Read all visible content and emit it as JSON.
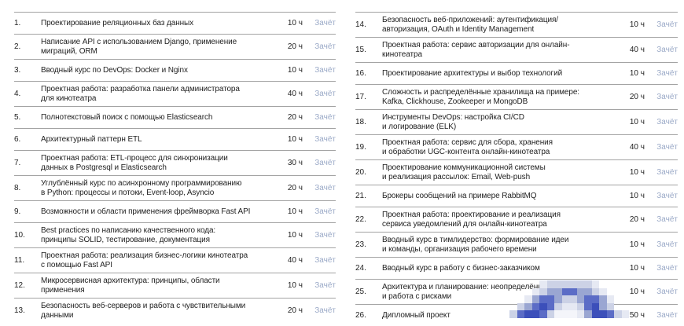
{
  "page": {
    "background": "#ffffff",
    "text_color": "#1f1f1f",
    "grade_color": "#9aa9c7",
    "rule_color": "#a3a3a3"
  },
  "columns": [
    {
      "side": "left",
      "items": [
        {
          "num": "1.",
          "title": "Проектирование реляционных баз данных",
          "hours": "10 ч",
          "grade": "Зачёт"
        },
        {
          "num": "2.",
          "title": "Написание API с использованием Django, применение\nмиграций, ORM",
          "hours": "20 ч",
          "grade": "Зачёт"
        },
        {
          "num": "3.",
          "title": "Вводный курс по DevOps: Docker и Nginx",
          "hours": "10 ч",
          "grade": "Зачёт"
        },
        {
          "num": "4.",
          "title": "Проектная работа: разработка панели администратора\nдля кинотеатра",
          "hours": "40 ч",
          "grade": "Зачёт"
        },
        {
          "num": "5.",
          "title": "Полнотекстовый поиск с помощью Elasticsearch",
          "hours": "20 ч",
          "grade": "Зачёт"
        },
        {
          "num": "6.",
          "title": "Архитектурный паттерн ETL",
          "hours": "10 ч",
          "grade": "Зачёт"
        },
        {
          "num": "7.",
          "title": "Проектная работа: ETL-процесс для синхронизации\nданных в Postgresql и Elasticsearch",
          "hours": "30 ч",
          "grade": "Зачёт"
        },
        {
          "num": "8.",
          "title": "Углублённый курс по асинхронному программированию\nв Python: процессы и потоки, Event-loop, Asyncio",
          "hours": "20 ч",
          "grade": "Зачёт"
        },
        {
          "num": "9.",
          "title": "Возможности и области применения фреймворка Fast API",
          "hours": "10 ч",
          "grade": "Зачёт"
        },
        {
          "num": "10.",
          "title": "Best practices по написанию качественного кода:\nпринципы SOLID, тестирование, документация",
          "hours": "10 ч",
          "grade": "Зачёт"
        },
        {
          "num": "11.",
          "title": "Проектная работа: реализация бизнес-логики кинотеатра\nс помощью Fast API",
          "hours": "40 ч",
          "grade": "Зачёт"
        },
        {
          "num": "12.",
          "title": "Микросервисная архитектура: принципы, области\nприменения",
          "hours": "10 ч",
          "grade": "Зачёт"
        },
        {
          "num": "13.",
          "title": "Безопасность веб-серверов и работа с чувствительными\nданными",
          "hours": "20 ч",
          "grade": "Зачёт"
        }
      ]
    },
    {
      "side": "right",
      "items": [
        {
          "num": "14.",
          "title": "Безопасность веб-приложений: аутентификация/\nавторизация, OAuth и Identity Management",
          "hours": "10 ч",
          "grade": "Зачёт"
        },
        {
          "num": "15.",
          "title": "Проектная работа: сервис авторизации для онлайн-\nкинотеатра",
          "hours": "40 ч",
          "grade": "Зачёт"
        },
        {
          "num": "16.",
          "title": "Проектирование архитектуры и выбор технологий",
          "hours": "10 ч",
          "grade": "Зачёт"
        },
        {
          "num": "17.",
          "title": "Сложность и распределённые хранилища на примере:\nKafka, Clickhouse, Zookeeper и MongoDB",
          "hours": "20 ч",
          "grade": "Зачёт"
        },
        {
          "num": "18.",
          "title": "Инструменты DevOps: настройка CI/CD\nи логирование (ELK)",
          "hours": "10 ч",
          "grade": "Зачёт"
        },
        {
          "num": "19.",
          "title": "Проектная работа: сервис для сбора, хранения\nи обработки UGC-контента онлайн-кинотеатра",
          "hours": "40 ч",
          "grade": "Зачёт"
        },
        {
          "num": "20.",
          "title": "Проектирование коммуникационной системы\nи реализация рассылок: Email, Web-push",
          "hours": "10 ч",
          "grade": "Зачёт"
        },
        {
          "num": "21.",
          "title": "Брокеры сообщений на примере RabbitMQ",
          "hours": "10 ч",
          "grade": "Зачёт"
        },
        {
          "num": "22.",
          "title": "Проектная работа: проектирование и реализация\nсервиса уведомлений для онлайн-кинотеатра",
          "hours": "20 ч",
          "grade": "Зачёт"
        },
        {
          "num": "23.",
          "title": "Вводный курс в тимлидерство: формирование идеи\nи команды, организация рабочего времени",
          "hours": "10 ч",
          "grade": "Зачёт"
        },
        {
          "num": "24.",
          "title": "Вводный курс в работу с бизнес-заказчиком",
          "hours": "10 ч",
          "grade": "Зачёт"
        },
        {
          "num": "25.",
          "title": "Архитектура и планирование: неопределённость\nи работа с рисками",
          "hours": "10 ч",
          "grade": "Зачёт"
        },
        {
          "num": "26.",
          "title": "Дипломный проект",
          "hours": "50 ч",
          "grade": "Зачёт"
        }
      ]
    }
  ],
  "stamp": {
    "palette": {
      "_": "transparent",
      "a": "#e6e9f3",
      "b": "#ccd2e6",
      "c": "#9aa6d2",
      "d": "#5b6cc6",
      "e": "#3c4fba",
      "f": "#f4f5fa"
    },
    "grid": [
      "____abbbbbba____",
      "___abccddccba___",
      "__acddcbbcddca__",
      "_bcdedbaabdecb__",
      "bdeedbfffaceedba"
    ]
  }
}
